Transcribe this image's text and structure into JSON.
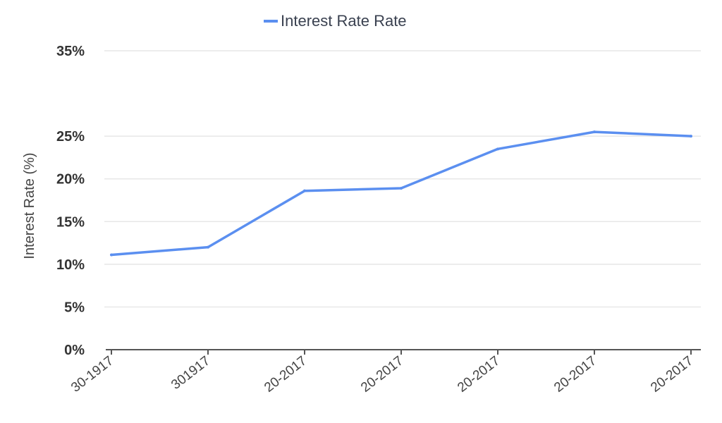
{
  "chart_data": {
    "type": "line",
    "title": "",
    "xlabel": "",
    "ylabel": "Interest Rate (%)",
    "categories": [
      "30-1917",
      "301917",
      "20-2017",
      "20-2017",
      "20-2017",
      "20-2017",
      "20-2017"
    ],
    "series": [
      {
        "name": "Interest Rate Rate",
        "values": [
          11.1,
          12.0,
          18.6,
          18.9,
          23.5,
          25.5,
          25.0
        ]
      }
    ],
    "ylim": [
      0,
      35
    ],
    "yticks": [
      "0%",
      "5%",
      "10%",
      "15%",
      "20%",
      "25%",
      "35%"
    ],
    "ytick_values": [
      0,
      5,
      10,
      15,
      20,
      25,
      35
    ],
    "grid": true,
    "legend_position": "top-center",
    "colors": {
      "series": "#5b8ff0",
      "grid": "#e2e2e2",
      "axis": "#555555"
    }
  }
}
